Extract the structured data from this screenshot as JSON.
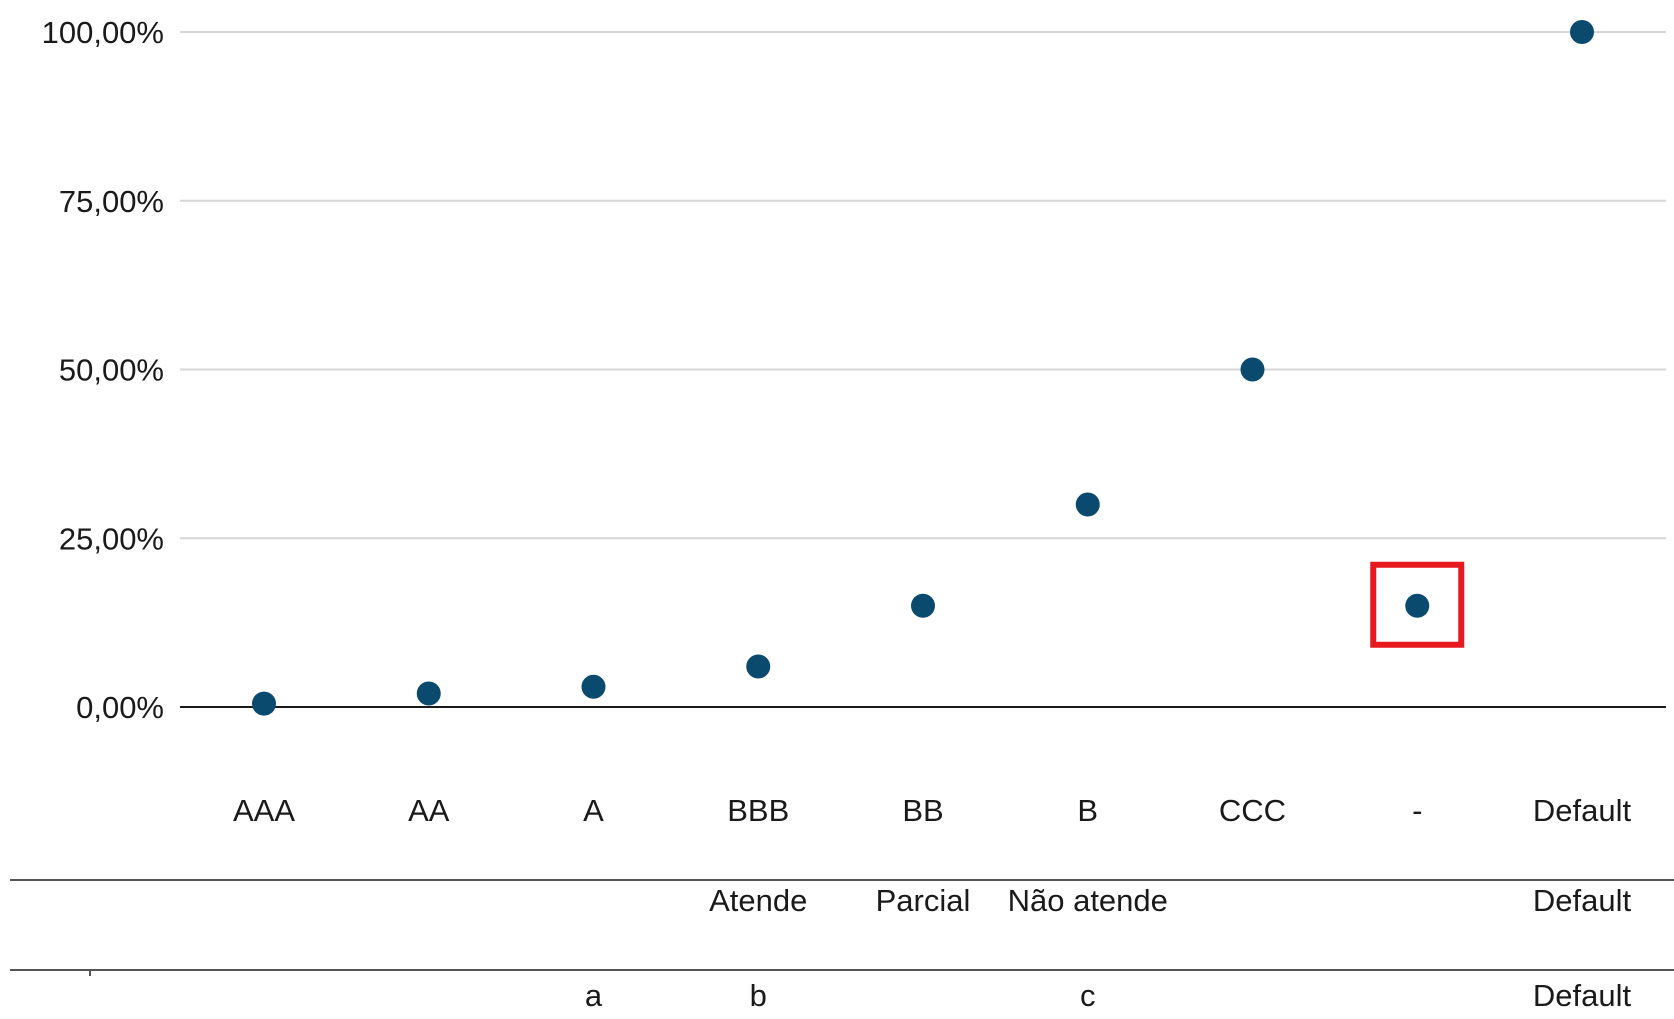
{
  "chart_data": {
    "type": "scatter",
    "categories": [
      "AAA",
      "AA",
      "A",
      "BBB",
      "BB",
      "B",
      "CCC",
      "-",
      "Default"
    ],
    "values": [
      0.5,
      2,
      3,
      6,
      15,
      30,
      50,
      15,
      100
    ],
    "yticks": [
      "0,00%",
      "25,00%",
      "50,00%",
      "75,00%",
      "100,00%"
    ],
    "ylim": [
      0,
      100
    ],
    "grid": true,
    "marker_color": "#0b4a6f",
    "highlight": {
      "category": "-",
      "color": "#e8191f"
    },
    "secondary_rows": [
      {
        "labels": [
          {
            "category": "BBB",
            "text": "Atende"
          },
          {
            "category": "BB",
            "text": "Parcial"
          },
          {
            "category": "B",
            "text": "Não atende"
          },
          {
            "category": "Default",
            "text": "Default"
          }
        ]
      },
      {
        "labels": [
          {
            "category": "A",
            "text": "a"
          },
          {
            "category": "BBB",
            "text": "b"
          },
          {
            "category": "B",
            "text": "c"
          },
          {
            "category": "Default",
            "text": "Default"
          }
        ]
      }
    ]
  }
}
